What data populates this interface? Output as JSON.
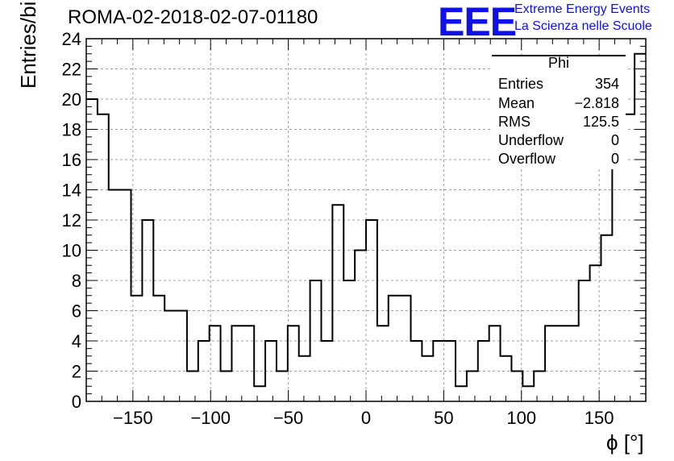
{
  "title": "ROMA-02-2018-02-07-01180",
  "logo": {
    "mark": "EEE",
    "line1": "Extreme Energy Events",
    "line2": "La Scienza nelle Scuole",
    "color": "#1010e8"
  },
  "stats": {
    "title": "Phi",
    "rows": [
      {
        "label": "Entries",
        "value": "354"
      },
      {
        "label": "Mean",
        "value": "−2.818"
      },
      {
        "label": "RMS",
        "value": "125.5"
      },
      {
        "label": "Underflow",
        "value": "0"
      },
      {
        "label": "Overflow",
        "value": "0"
      }
    ]
  },
  "chart_data": {
    "type": "histogram",
    "xlabel": "ϕ [°]",
    "ylabel": "Entries/bin",
    "xlim": [
      -180,
      180
    ],
    "ylim": [
      0,
      24
    ],
    "grid": true,
    "bin_width": 7.2,
    "bin_edges_start": -180,
    "counts": [
      20,
      19,
      14,
      14,
      7,
      12,
      7,
      6,
      6,
      2,
      4,
      5,
      2,
      5,
      5,
      1,
      4,
      2,
      5,
      3,
      8,
      4,
      13,
      8,
      10,
      12,
      5,
      7,
      7,
      4,
      3,
      4,
      4,
      1,
      2,
      4,
      5,
      3,
      2,
      1,
      2,
      5,
      5,
      5,
      8,
      9,
      11,
      17,
      19,
      23
    ],
    "x_ticks": [
      -150,
      -100,
      -50,
      0,
      50,
      100,
      150
    ],
    "x_tick_labels": [
      "−150",
      "−100",
      "−50",
      "0",
      "50",
      "100",
      "150"
    ],
    "y_ticks": [
      0,
      2,
      4,
      6,
      8,
      10,
      12,
      14,
      16,
      18,
      20,
      22,
      24
    ],
    "line_color": "#000000",
    "grid_color": "#a0a0a0"
  }
}
